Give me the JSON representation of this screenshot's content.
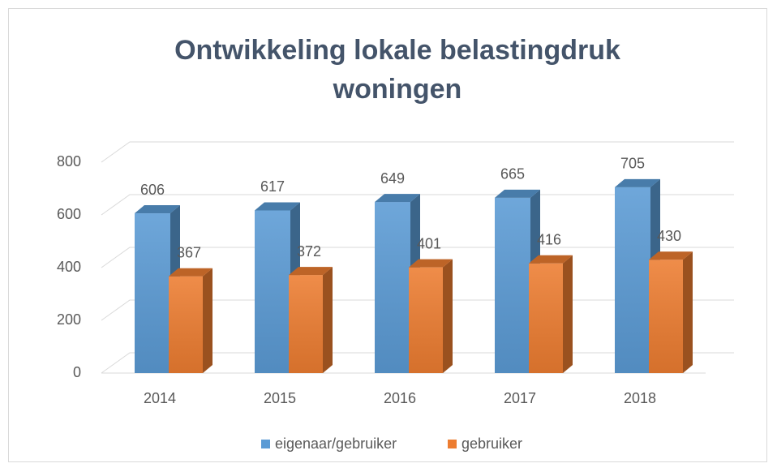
{
  "chart_data": {
    "type": "bar3d",
    "title": "Ontwikkeling lokale belastingdruk woningen",
    "categories": [
      "2014",
      "2015",
      "2016",
      "2017",
      "2018"
    ],
    "series": [
      {
        "name": "eigenaar/gebruiker",
        "color": "#5b9bd5",
        "values": [
          606,
          617,
          649,
          665,
          705
        ]
      },
      {
        "name": "gebruiker",
        "color": "#ed7d31",
        "values": [
          367,
          372,
          401,
          416,
          430
        ]
      }
    ],
    "ylim": [
      0,
      800
    ],
    "yticks": [
      0,
      200,
      400,
      600,
      800
    ],
    "grid": true,
    "legend": "bottom"
  }
}
